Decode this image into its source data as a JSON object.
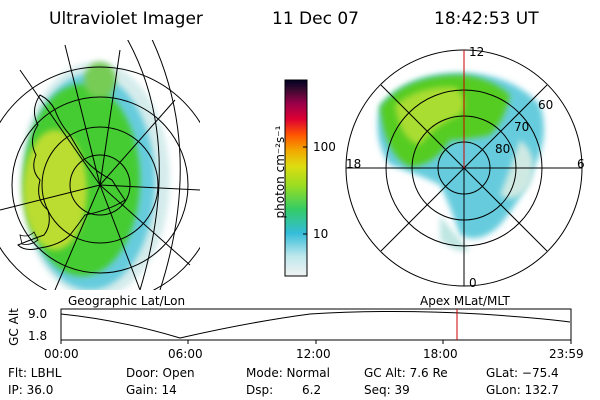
{
  "header": {
    "instrument": "Ultraviolet Imager",
    "date": "11 Dec 07",
    "time": "18:42:53 UT"
  },
  "colorbar": {
    "unit_label": "photon cm⁻²s⁻¹",
    "ticks": [
      "100",
      "10"
    ]
  },
  "polar_map": {
    "top_label": "12",
    "bottom_label": "0",
    "left_label": "18",
    "right_label": "6",
    "lat_labels": [
      "60",
      "70",
      "80"
    ]
  },
  "projection": {
    "left": "Geographic Lat/Lon",
    "right": "Apex  MLat/MLT"
  },
  "altitude_plot": {
    "ylabel": "GC Alt",
    "y_ticks": [
      "9.0",
      "1.8"
    ],
    "x_ticks": [
      "00:00",
      "06:00",
      "12:00",
      "18:00",
      "23:59"
    ]
  },
  "status": {
    "flt": "Flt: LBHL",
    "ip": "IP: 36.0",
    "door": "Door: Open",
    "gain": "Gain: 14",
    "mode": "Mode: Normal",
    "dsp_label": "Dsp:",
    "dsp_value": "6.2",
    "gc_alt": "GC Alt: 7.6 Re",
    "seq": "Seq: 39",
    "glat": "GLat: −75.4",
    "glon": "GLon: 132.7"
  },
  "colors": {
    "background": "#ffffff",
    "current_time_marker": "#cc0000",
    "aurora_green": "#55cc22",
    "aurora_yellow": "#aadd33",
    "aurora_cyan": "#55ccdd"
  }
}
